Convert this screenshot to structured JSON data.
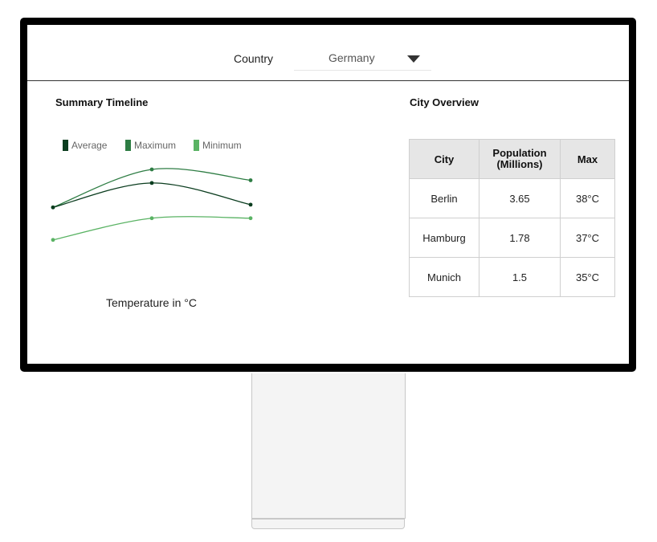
{
  "header": {
    "country_label": "Country",
    "country_value": "Germany"
  },
  "summary": {
    "title": "Summary Timeline"
  },
  "city_overview": {
    "title": "City Overview",
    "columns": [
      "City",
      "Population\n(Millions)",
      "Max"
    ],
    "rows": [
      {
        "city": "Berlin",
        "population": "3.65",
        "max": "38°C"
      },
      {
        "city": "Hamburg",
        "population": "1.78",
        "max": "37°C"
      },
      {
        "city": "Munich",
        "population": "1.5",
        "max": "35°C"
      }
    ]
  },
  "chart_data": {
    "type": "line",
    "title": "Summary Timeline",
    "xlabel": "Temperature in °C",
    "ylabel": "",
    "x": [
      0,
      1,
      2
    ],
    "ylim": [
      0,
      40
    ],
    "grid": false,
    "legend": "top-left",
    "series": [
      {
        "name": "Average",
        "color": "#0b3d1f",
        "values": [
          26,
          35,
          27
        ]
      },
      {
        "name": "Maximum",
        "color": "#2e7d44",
        "values": [
          26,
          40,
          36
        ]
      },
      {
        "name": "Minimum",
        "color": "#5ab364",
        "values": [
          14,
          22,
          22
        ]
      }
    ]
  }
}
